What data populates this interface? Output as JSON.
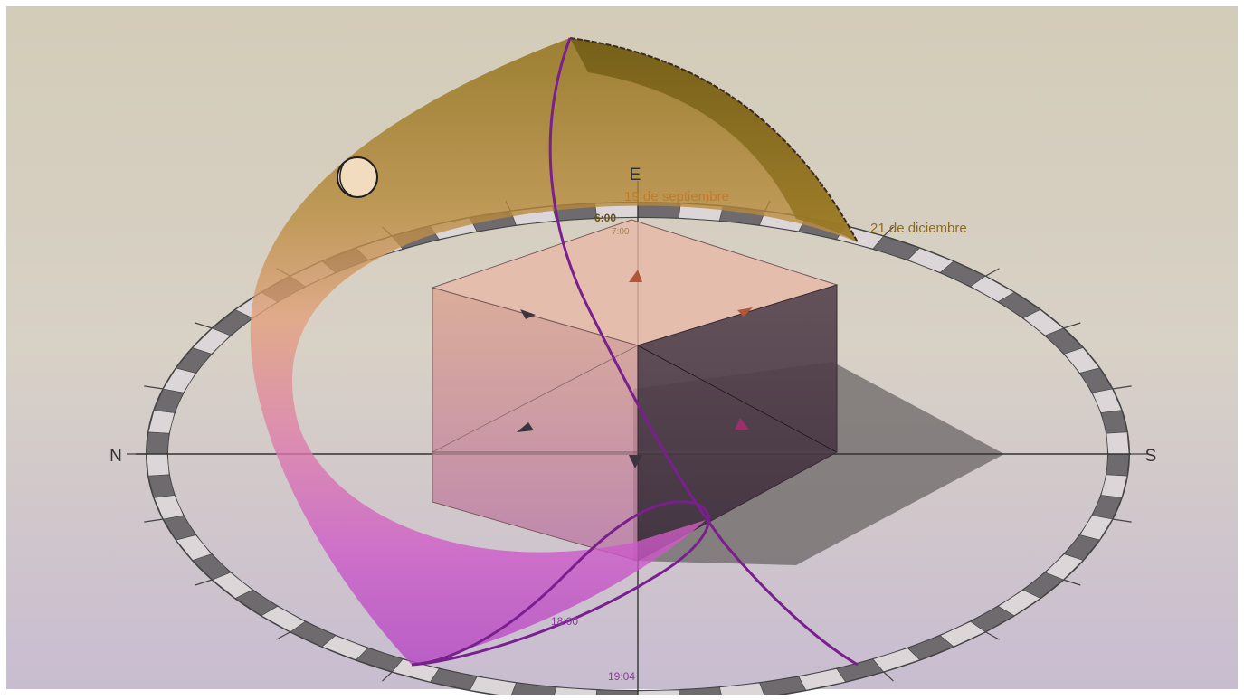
{
  "compass": {
    "north": "N",
    "east": "E",
    "south": "S"
  },
  "labels": {
    "september": "19 de septiembre",
    "december": "21 de diciembre",
    "time_6": "6:00",
    "time_7": "7:00",
    "time_18": "18:00",
    "time_19": "19:04"
  },
  "colors": {
    "background_top": "#d2cbb6",
    "background_bottom": "#c9bdd2",
    "surface_gold": "#8a6a10",
    "surface_magenta": "#c54fcf",
    "analemma": "#7a1f8e",
    "label_orange": "#b8762a",
    "label_purple": "#8a3d9a",
    "compass_ring": "#3d3d3d"
  }
}
